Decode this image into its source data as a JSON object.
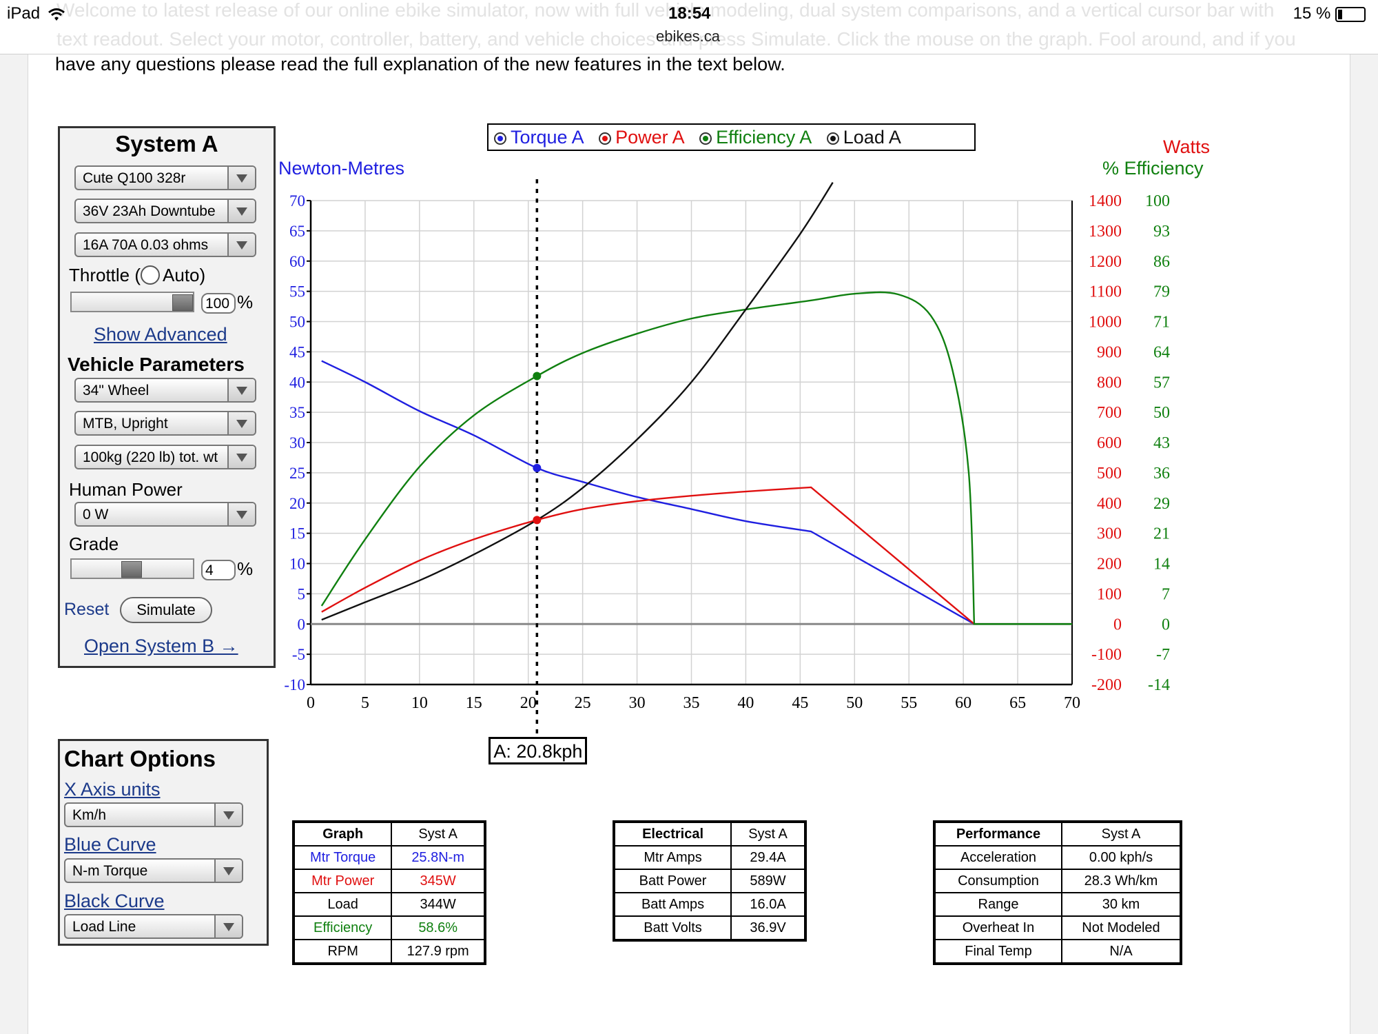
{
  "status_bar": {
    "device": "iPad",
    "time": "18:54",
    "url": "ebikes.ca",
    "battery": "15 %"
  },
  "intro": {
    "line1": "Welcome to latest release of our online ebike simulator, now with full vehicle modeling, dual system comparisons, and a vertical cursor bar with",
    "line2": "text readout. Select your motor, controller, battery, and vehicle choices and press Simulate. Click the mouse on the graph. Fool around, and if you",
    "line3": "have any questions please read the full explanation of the new features in the text below."
  },
  "system_a": {
    "title": "System A",
    "motor": "Cute Q100 328r",
    "battery": "36V 23Ah Downtube",
    "controller": "16A 70A 0.03 ohms",
    "throttle_label": "Throttle (",
    "auto_label": "Auto)",
    "throttle_value": "100",
    "throttle_fraction": 1.0,
    "percent": "%",
    "show_advanced": "Show Advanced",
    "vehicle_title": "Vehicle Parameters",
    "wheel": "34\"  Wheel",
    "bike_type": "MTB, Upright",
    "weight": "100kg (220 lb) tot. wt",
    "human_power_label": "Human Power",
    "human_power": "0 W",
    "grade_label": "Grade",
    "grade_value": "4",
    "reset": "Reset",
    "simulate": "Simulate",
    "open_b": "Open System B →"
  },
  "chart_options": {
    "title": "Chart Options",
    "x_axis_label": "X Axis units",
    "x_axis_value": "Km/h",
    "blue_label": "Blue Curve",
    "blue_value": "N-m Torque",
    "black_label": "Black Curve",
    "black_value": "Load Line"
  },
  "colors": {
    "torque": "#1f1fe0",
    "power": "#e01010",
    "efficiency": "#108010",
    "load": "#111111"
  },
  "chart_data": {
    "type": "line",
    "legend": [
      "Torque A",
      "Power A",
      "Efficiency A",
      "Load A"
    ],
    "legend_placement": "top-center",
    "ylabel_left": "Newton-Metres",
    "ylabel_right_power": "Watts",
    "ylabel_right_eff": "% Efficiency",
    "xlim": [
      0,
      70
    ],
    "ylim": [
      -10,
      70
    ],
    "x_ticks": [
      0,
      5,
      10,
      15,
      20,
      25,
      30,
      35,
      40,
      45,
      50,
      55,
      60,
      65,
      70
    ],
    "y_ticks": [
      -10,
      -5,
      0,
      5,
      10,
      15,
      20,
      25,
      30,
      35,
      40,
      45,
      50,
      55,
      60,
      65,
      70
    ],
    "y_ticks_watts": [
      -200,
      -100,
      0,
      100,
      200,
      300,
      400,
      500,
      600,
      700,
      800,
      900,
      1000,
      1100,
      1200,
      1300,
      1400
    ],
    "y_ticks_eff": [
      -14,
      -7,
      0,
      7,
      14,
      21,
      29,
      36,
      43,
      50,
      57,
      64,
      71,
      79,
      86,
      93,
      100
    ],
    "grid": true,
    "cursor_x": 20.8,
    "cursor_label": "A: 20.8kph",
    "series": [
      {
        "name": "Torque A",
        "color": "#1f1fe0",
        "x": [
          1,
          5,
          10,
          15,
          20.8,
          25,
          30,
          35,
          40,
          46,
          61
        ],
        "y": [
          43.5,
          40,
          35.2,
          31.2,
          25.8,
          23.5,
          21,
          19,
          17,
          15.3,
          0
        ]
      },
      {
        "name": "Power A",
        "color": "#e01010",
        "x": [
          1,
          5,
          10,
          15,
          20.8,
          25,
          30,
          35,
          40,
          46,
          61
        ],
        "y": [
          2,
          6,
          10.5,
          14,
          17.2,
          19,
          20.3,
          21.2,
          21.9,
          22.6,
          0
        ]
      },
      {
        "name": "Efficiency A",
        "color": "#108010",
        "x": [
          1,
          5,
          10,
          15,
          20.8,
          25,
          30,
          35,
          40,
          46,
          50,
          54,
          57,
          59,
          60.5,
          61,
          70
        ],
        "y": [
          3,
          14,
          26,
          34.5,
          41,
          44.8,
          48,
          50.5,
          52,
          53.5,
          54.6,
          54.5,
          51,
          42,
          25,
          0,
          0
        ]
      },
      {
        "name": "Load A",
        "color": "#111111",
        "x": [
          1,
          5,
          10,
          15,
          20.8,
          25,
          30,
          35,
          40,
          45,
          48
        ],
        "y": [
          0.7,
          3.6,
          7.2,
          11.5,
          17.2,
          22.5,
          30.5,
          40,
          52,
          64.5,
          73
        ]
      }
    ],
    "cursor_points": [
      {
        "series": "Efficiency A",
        "y": 41
      },
      {
        "series": "Torque A",
        "y": 25.8
      },
      {
        "series": "Power A",
        "y": 17.2
      }
    ]
  },
  "tables": {
    "graph": {
      "header": [
        "Graph",
        "Syst A"
      ],
      "rows": [
        [
          "Mtr Torque",
          "25.8N-m"
        ],
        [
          "Mtr Power",
          "345W"
        ],
        [
          "Load",
          "344W"
        ],
        [
          "Efficiency",
          "58.6%"
        ],
        [
          "RPM",
          "127.9 rpm"
        ]
      ]
    },
    "electrical": {
      "header": [
        "Electrical",
        "Syst A"
      ],
      "rows": [
        [
          "Mtr Amps",
          "29.4A"
        ],
        [
          "Batt Power",
          "589W"
        ],
        [
          "Batt Amps",
          "16.0A"
        ],
        [
          "Batt Volts",
          "36.9V"
        ]
      ]
    },
    "performance": {
      "header": [
        "Performance",
        "Syst A"
      ],
      "rows": [
        [
          "Acceleration",
          "0.00 kph/s"
        ],
        [
          "Consumption",
          "28.3 Wh/km"
        ],
        [
          "Range",
          "30 km"
        ],
        [
          "Overheat In",
          "Not Modeled"
        ],
        [
          "Final Temp",
          "N/A"
        ]
      ]
    }
  }
}
